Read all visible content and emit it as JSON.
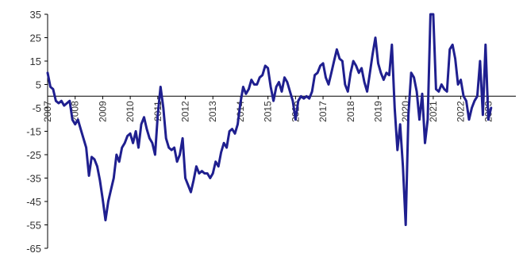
{
  "chart_data": {
    "type": "line",
    "title": "",
    "xlabel": "",
    "ylabel": "",
    "ylim": [
      -65,
      35
    ],
    "yticks": [
      35,
      25,
      15,
      5,
      -5,
      -15,
      -25,
      -35,
      -45,
      -55,
      -65
    ],
    "xlim": [
      2007,
      2024
    ],
    "xticks": [
      {
        "x": 2007,
        "label": "2007"
      },
      {
        "x": 2008,
        "label": "2008"
      },
      {
        "x": 2009,
        "label": "2009"
      },
      {
        "x": 2010,
        "label": "2010"
      },
      {
        "x": 2011,
        "label": "2011"
      },
      {
        "x": 2012,
        "label": "2012"
      },
      {
        "x": 2013,
        "label": "2013"
      },
      {
        "x": 2014,
        "label": "2014"
      },
      {
        "x": 2015,
        "label": "2015"
      },
      {
        "x": 2016,
        "label": "2016"
      },
      {
        "x": 2017,
        "label": "2017"
      },
      {
        "x": 2018,
        "label": "2018"
      },
      {
        "x": 2019,
        "label": "2019"
      },
      {
        "x": 2020,
        "label": "2020"
      },
      {
        "x": 2021,
        "label": "2021"
      },
      {
        "x": 2022,
        "label": "2022"
      },
      {
        "x": 2023,
        "label": "2023"
      }
    ],
    "grid": false,
    "zero_line": true,
    "line_color": "#1f1f8f",
    "axis_color": "#000000",
    "series": [
      {
        "values": [
          [
            2007.0,
            10
          ],
          [
            2007.1,
            4
          ],
          [
            2007.2,
            3
          ],
          [
            2007.3,
            -2
          ],
          [
            2007.4,
            -3
          ],
          [
            2007.5,
            -2
          ],
          [
            2007.6,
            -4
          ],
          [
            2007.7,
            -3
          ],
          [
            2007.8,
            -2
          ],
          [
            2007.9,
            -10
          ],
          [
            2008.0,
            -12
          ],
          [
            2008.1,
            -10
          ],
          [
            2008.2,
            -14
          ],
          [
            2008.3,
            -18
          ],
          [
            2008.4,
            -22
          ],
          [
            2008.5,
            -34
          ],
          [
            2008.6,
            -26
          ],
          [
            2008.7,
            -27
          ],
          [
            2008.8,
            -30
          ],
          [
            2008.9,
            -36
          ],
          [
            2009.0,
            -44
          ],
          [
            2009.1,
            -53
          ],
          [
            2009.2,
            -45
          ],
          [
            2009.3,
            -40
          ],
          [
            2009.4,
            -35
          ],
          [
            2009.5,
            -25
          ],
          [
            2009.6,
            -28
          ],
          [
            2009.7,
            -22
          ],
          [
            2009.8,
            -20
          ],
          [
            2009.9,
            -17
          ],
          [
            2010.0,
            -16
          ],
          [
            2010.1,
            -20
          ],
          [
            2010.2,
            -15
          ],
          [
            2010.3,
            -22
          ],
          [
            2010.4,
            -12
          ],
          [
            2010.5,
            -9
          ],
          [
            2010.6,
            -14
          ],
          [
            2010.7,
            -18
          ],
          [
            2010.8,
            -20
          ],
          [
            2010.9,
            -25
          ],
          [
            2011.0,
            -8
          ],
          [
            2011.1,
            4
          ],
          [
            2011.2,
            -5
          ],
          [
            2011.3,
            -18
          ],
          [
            2011.4,
            -22
          ],
          [
            2011.5,
            -23
          ],
          [
            2011.6,
            -22
          ],
          [
            2011.7,
            -28
          ],
          [
            2011.8,
            -25
          ],
          [
            2011.9,
            -18
          ],
          [
            2012.0,
            -35
          ],
          [
            2012.1,
            -38
          ],
          [
            2012.2,
            -41
          ],
          [
            2012.3,
            -36
          ],
          [
            2012.4,
            -30
          ],
          [
            2012.5,
            -33
          ],
          [
            2012.6,
            -32
          ],
          [
            2012.7,
            -33
          ],
          [
            2012.8,
            -33
          ],
          [
            2012.9,
            -35
          ],
          [
            2013.0,
            -33
          ],
          [
            2013.1,
            -28
          ],
          [
            2013.2,
            -30
          ],
          [
            2013.3,
            -24
          ],
          [
            2013.4,
            -20
          ],
          [
            2013.5,
            -22
          ],
          [
            2013.6,
            -15
          ],
          [
            2013.7,
            -14
          ],
          [
            2013.8,
            -16
          ],
          [
            2013.9,
            -12
          ],
          [
            2014.0,
            -3
          ],
          [
            2014.1,
            4
          ],
          [
            2014.2,
            1
          ],
          [
            2014.3,
            3
          ],
          [
            2014.4,
            7
          ],
          [
            2014.5,
            5
          ],
          [
            2014.6,
            5
          ],
          [
            2014.7,
            8
          ],
          [
            2014.8,
            9
          ],
          [
            2014.9,
            13
          ],
          [
            2015.0,
            12
          ],
          [
            2015.1,
            4
          ],
          [
            2015.2,
            -2
          ],
          [
            2015.3,
            4
          ],
          [
            2015.4,
            6
          ],
          [
            2015.5,
            2
          ],
          [
            2015.6,
            8
          ],
          [
            2015.7,
            6
          ],
          [
            2015.8,
            2
          ],
          [
            2015.9,
            -2
          ],
          [
            2016.0,
            -10
          ],
          [
            2016.1,
            -2
          ],
          [
            2016.2,
            0
          ],
          [
            2016.3,
            -1
          ],
          [
            2016.4,
            0
          ],
          [
            2016.5,
            -1
          ],
          [
            2016.6,
            2
          ],
          [
            2016.7,
            9
          ],
          [
            2016.8,
            10
          ],
          [
            2016.9,
            13
          ],
          [
            2017.0,
            14
          ],
          [
            2017.1,
            8
          ],
          [
            2017.2,
            5
          ],
          [
            2017.3,
            10
          ],
          [
            2017.4,
            15
          ],
          [
            2017.5,
            20
          ],
          [
            2017.6,
            16
          ],
          [
            2017.7,
            15
          ],
          [
            2017.8,
            5
          ],
          [
            2017.9,
            2
          ],
          [
            2018.0,
            10
          ],
          [
            2018.1,
            15
          ],
          [
            2018.2,
            13
          ],
          [
            2018.3,
            10
          ],
          [
            2018.4,
            12
          ],
          [
            2018.5,
            6
          ],
          [
            2018.6,
            2
          ],
          [
            2018.7,
            10
          ],
          [
            2018.8,
            18
          ],
          [
            2018.9,
            25
          ],
          [
            2019.0,
            14
          ],
          [
            2019.1,
            10
          ],
          [
            2019.2,
            7
          ],
          [
            2019.3,
            10
          ],
          [
            2019.4,
            9
          ],
          [
            2019.5,
            22
          ],
          [
            2019.6,
            -5
          ],
          [
            2019.7,
            -23
          ],
          [
            2019.8,
            -12
          ],
          [
            2019.9,
            -30
          ],
          [
            2020.0,
            -55
          ],
          [
            2020.1,
            -8
          ],
          [
            2020.2,
            10
          ],
          [
            2020.3,
            8
          ],
          [
            2020.4,
            2
          ],
          [
            2020.5,
            -10
          ],
          [
            2020.6,
            1
          ],
          [
            2020.7,
            -20
          ],
          [
            2020.8,
            -10
          ],
          [
            2020.9,
            35
          ],
          [
            2021.0,
            35
          ],
          [
            2021.1,
            3
          ],
          [
            2021.2,
            2
          ],
          [
            2021.3,
            5
          ],
          [
            2021.4,
            3
          ],
          [
            2021.5,
            2
          ],
          [
            2021.6,
            20
          ],
          [
            2021.7,
            22
          ],
          [
            2021.8,
            16
          ],
          [
            2021.9,
            5
          ],
          [
            2022.0,
            7
          ],
          [
            2022.1,
            0
          ],
          [
            2022.2,
            -2
          ],
          [
            2022.3,
            -10
          ],
          [
            2022.4,
            -5
          ],
          [
            2022.5,
            -2
          ],
          [
            2022.6,
            0
          ],
          [
            2022.7,
            15
          ],
          [
            2022.8,
            -8
          ],
          [
            2022.9,
            22
          ],
          [
            2023.0,
            -10
          ],
          [
            2023.1,
            -5
          ]
        ]
      }
    ]
  }
}
